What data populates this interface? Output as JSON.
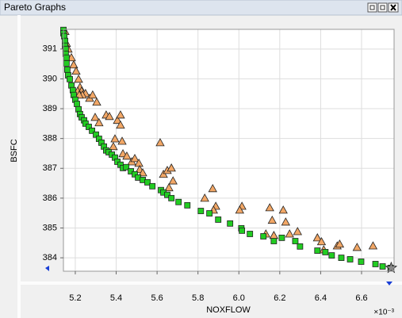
{
  "panel_title": "Pareto Graphs",
  "chart_data": {
    "type": "scatter",
    "x_label": "NOXFLOW",
    "y_label": "BSFC",
    "x_multiplier": "×10⁻³",
    "xlim": [
      5.142,
      6.759
    ],
    "ylim": [
      383.55,
      391.66
    ],
    "xticks": [
      5.2,
      5.4,
      5.6,
      5.8,
      {
        "value": 6,
        "label": "6.0"
      },
      6.2,
      6.4,
      6.6
    ],
    "yticks": [
      384,
      385,
      386,
      387,
      388,
      389,
      390,
      391
    ],
    "grid": true,
    "series": [
      {
        "color": "#f2a766",
        "marker": "triangle",
        "x": [
          5.15,
          5.157,
          5.165,
          5.181,
          5.192,
          5.204,
          5.216,
          5.223,
          5.231,
          5.25,
          5.27,
          5.285,
          5.305,
          5.212,
          5.235,
          5.219,
          5.297,
          5.316,
          5.351,
          5.367,
          5.394,
          5.406,
          5.421,
          5.421,
          5.429,
          5.386,
          5.433,
          5.452,
          5.476,
          5.491,
          5.511,
          5.515,
          5.53,
          5.615,
          5.631,
          5.65,
          5.67,
          5.678,
          5.658,
          5.833,
          5.872,
          5.887,
          5.876,
          6.015,
          6.004,
          6.151,
          6.163,
          6.132,
          6.171,
          6.217,
          6.229,
          6.248,
          6.287,
          6.384,
          6.404,
          6.415,
          6.481,
          6.493,
          6.578,
          6.656
        ],
        "values": [
          391.59,
          391.19,
          391.0,
          390.71,
          390.47,
          390.26,
          389.99,
          389.72,
          389.59,
          389.51,
          389.35,
          389.46,
          389.22,
          389.59,
          389.46,
          389.46,
          388.71,
          388.53,
          388.79,
          388.74,
          387.99,
          388.61,
          388.79,
          388.45,
          387.91,
          387.73,
          387.49,
          387.41,
          387.22,
          387.33,
          387.17,
          386.96,
          386.85,
          387.86,
          386.8,
          386.93,
          387.01,
          386.58,
          386.35,
          386.0,
          386.32,
          385.73,
          385.6,
          385.73,
          385.6,
          385.68,
          385.26,
          384.8,
          384.75,
          385.6,
          385.2,
          384.8,
          384.88,
          384.67,
          384.54,
          384.27,
          384.4,
          384.46,
          384.35,
          384.4
        ]
      },
      {
        "color": "#22cc22",
        "marker": "square",
        "x": [
          5.142,
          5.142,
          5.146,
          5.15,
          5.15,
          5.153,
          5.153,
          5.157,
          5.157,
          5.161,
          5.165,
          5.173,
          5.181,
          5.188,
          5.192,
          5.2,
          5.208,
          5.216,
          5.223,
          5.231,
          5.243,
          5.25,
          5.266,
          5.282,
          5.301,
          5.316,
          5.328,
          5.34,
          5.351,
          5.363,
          5.379,
          5.394,
          5.406,
          5.421,
          5.433,
          5.449,
          5.472,
          5.491,
          5.507,
          5.53,
          5.553,
          5.577,
          5.619,
          5.631,
          5.65,
          5.67,
          5.705,
          5.748,
          5.814,
          5.856,
          5.899,
          5.957,
          6.012,
          6.015,
          6.054,
          6.12,
          6.171,
          6.21,
          6.276,
          6.299,
          6.384,
          6.423,
          6.454,
          6.501,
          6.544,
          6.598,
          6.668,
          6.703,
          6.742
        ],
        "values": [
          391.64,
          391.53,
          391.43,
          391.27,
          391.11,
          391.0,
          390.84,
          390.71,
          390.52,
          390.31,
          390.12,
          389.99,
          389.78,
          389.62,
          389.46,
          389.3,
          389.16,
          388.98,
          388.82,
          388.71,
          388.61,
          388.5,
          388.39,
          388.26,
          388.13,
          387.99,
          387.86,
          387.73,
          387.6,
          387.54,
          387.46,
          387.36,
          387.22,
          387.12,
          387.01,
          387.04,
          386.9,
          386.8,
          386.69,
          386.61,
          386.53,
          386.4,
          386.27,
          386.19,
          386.11,
          386.0,
          385.87,
          385.76,
          385.57,
          385.49,
          385.28,
          385.15,
          384.99,
          384.91,
          384.8,
          384.72,
          384.56,
          384.67,
          384.56,
          384.38,
          384.24,
          384.19,
          384.08,
          384.0,
          383.95,
          383.87,
          383.79,
          383.71,
          383.66
        ]
      },
      {
        "color": "#8a8a8a",
        "marker": "star",
        "x": [
          6.745
        ],
        "values": [
          383.66
        ]
      }
    ]
  }
}
